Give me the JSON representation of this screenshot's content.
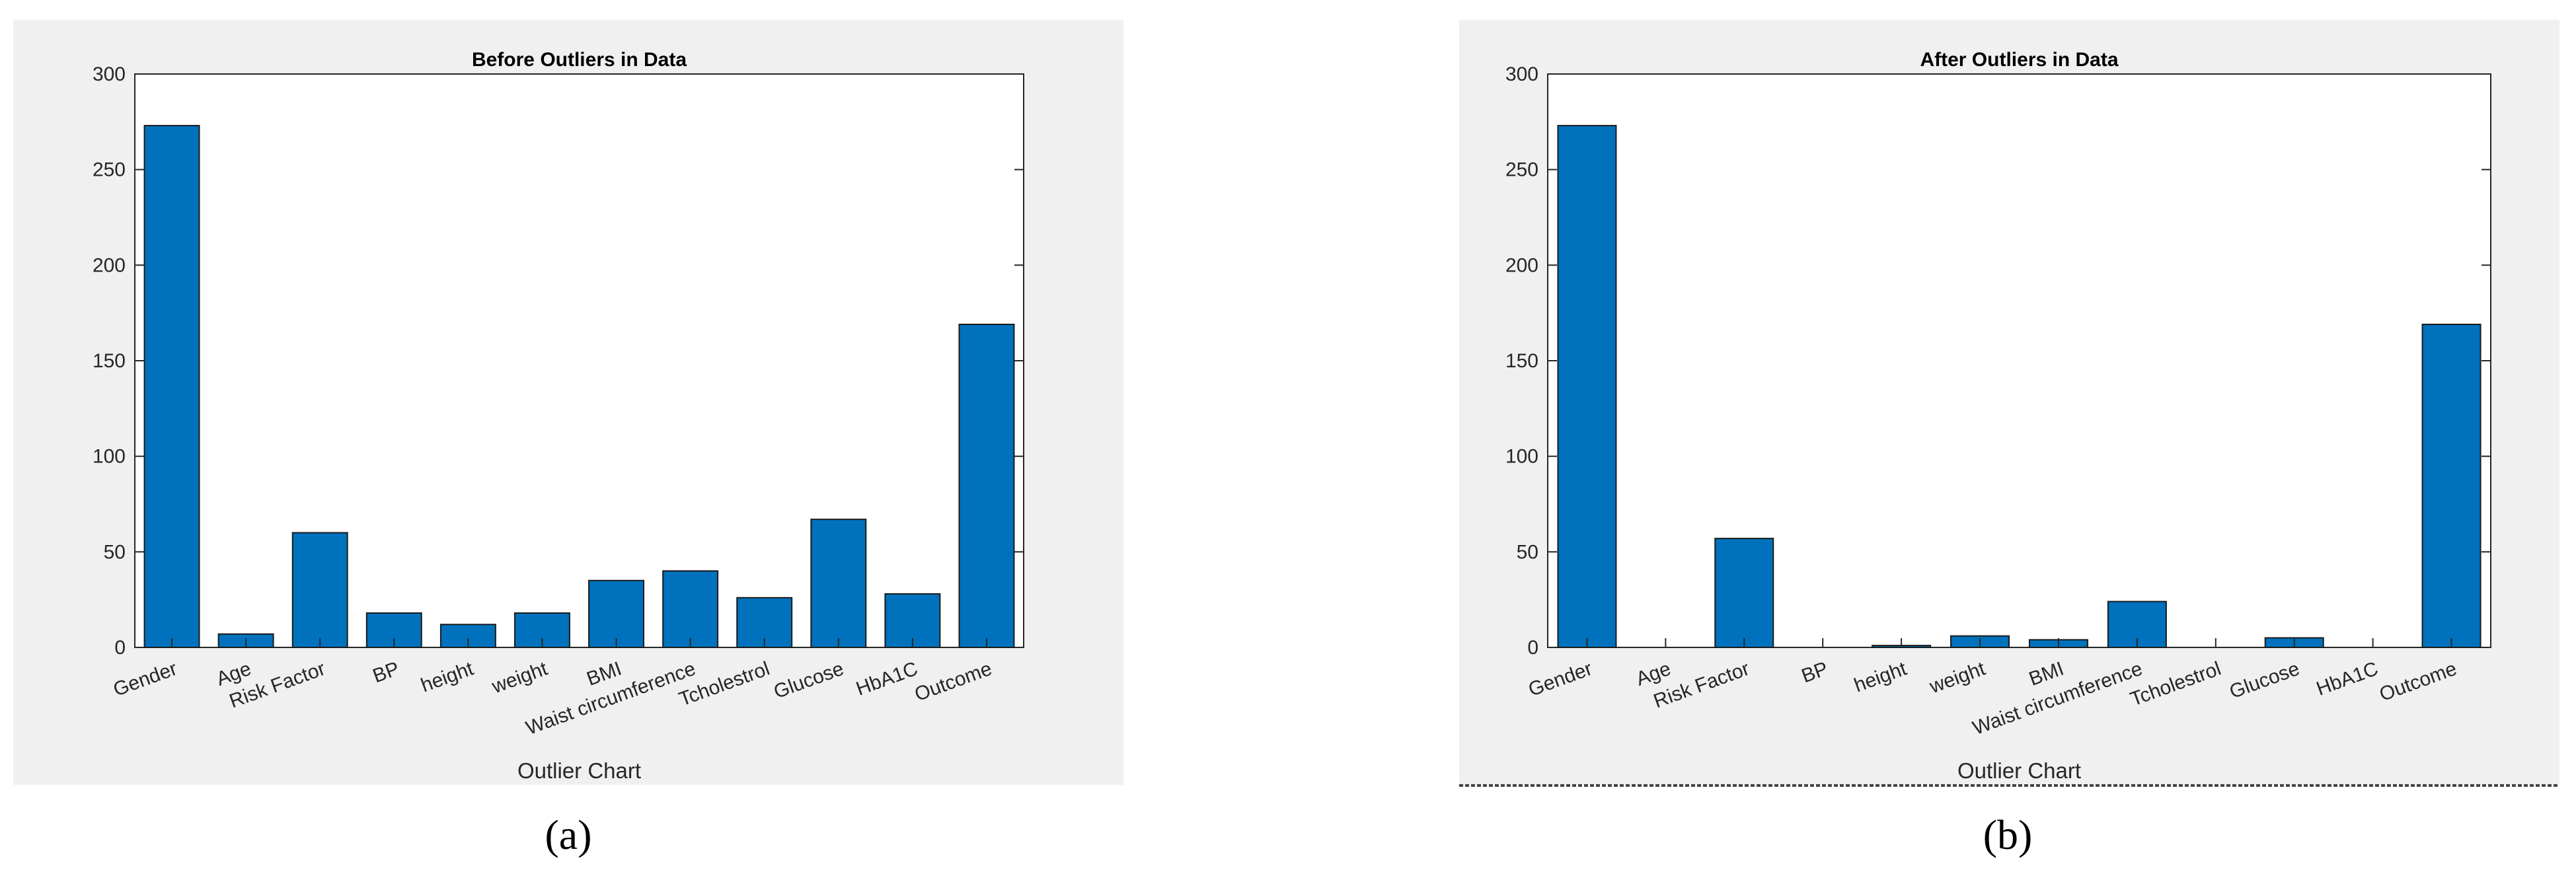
{
  "chart_data": [
    {
      "type": "bar",
      "title": "Before Outliers in Data",
      "xlabel": "Outlier Chart",
      "caption": "(a)",
      "categories": [
        "Gender",
        "Age",
        "Risk Factor",
        "BP",
        "height",
        "weight",
        "BMI",
        "Waist circumference",
        "Tcholestrol",
        "Glucose",
        "HbA1C",
        "Outcome"
      ],
      "values": [
        273,
        7,
        60,
        18,
        12,
        18,
        35,
        40,
        26,
        67,
        28,
        169
      ],
      "color": "#0072bd",
      "ylim": [
        0,
        300
      ],
      "yticks": [
        0,
        50,
        100,
        150,
        200,
        250,
        300
      ]
    },
    {
      "type": "bar",
      "title": "After Outliers in Data",
      "xlabel": "Outlier Chart",
      "caption": "(b)",
      "categories": [
        "Gender",
        "Age",
        "Risk Factor",
        "BP",
        "height",
        "weight",
        "BMI",
        "Waist circumference",
        "Tcholestrol",
        "Glucose",
        "HbA1C",
        "Outcome"
      ],
      "values": [
        273,
        0,
        57,
        0,
        1,
        6,
        4,
        24,
        0,
        5,
        0,
        169
      ],
      "color": "#0072bd",
      "ylim": [
        0,
        300
      ],
      "yticks": [
        0,
        50,
        100,
        150,
        200,
        250,
        300
      ]
    }
  ]
}
